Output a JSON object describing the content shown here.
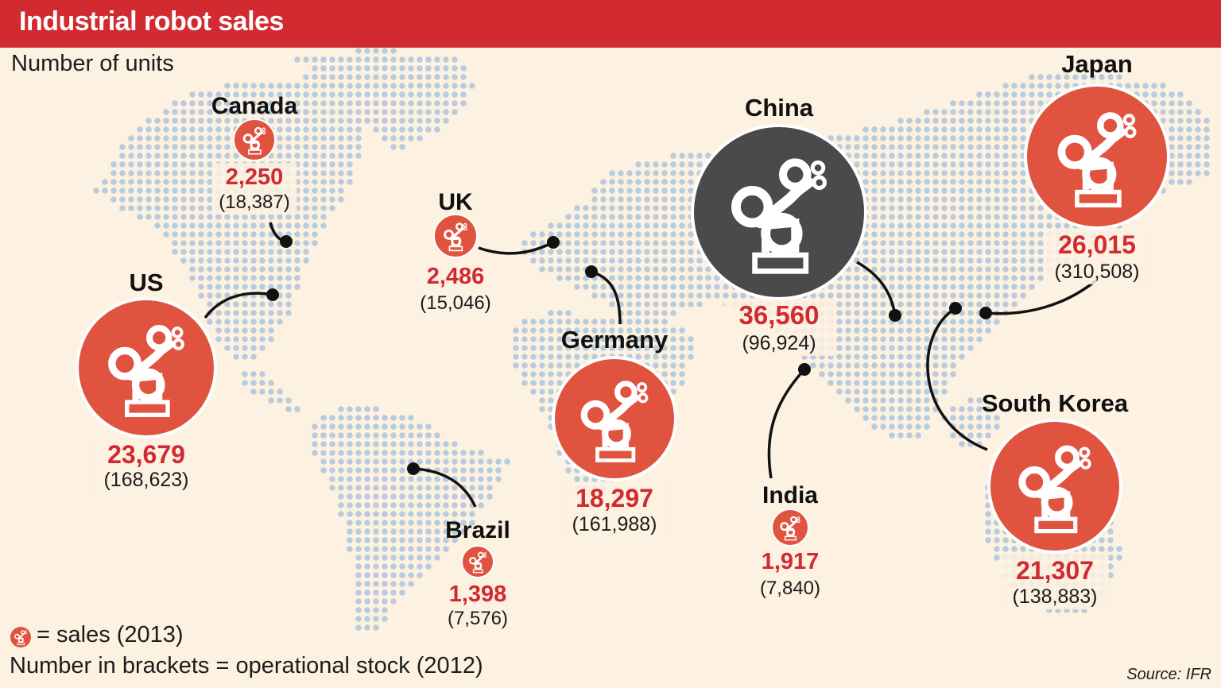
{
  "title": "Industrial robot sales",
  "subtitle": "Number of units",
  "legend": {
    "icon": "robot-arm-icon",
    "sales_text": "= sales (2013)",
    "stock_text": "Number in brackets = operational stock (2012)"
  },
  "source": "Source: IFR",
  "colors": {
    "header": "#d12a30",
    "circle_red": "#e0533f",
    "circle_highlight": "#4a4a4a",
    "dots": "#b9ccdd",
    "background": "#fdf1e1"
  },
  "countries": [
    {
      "name": "Canada",
      "sales": "2,250",
      "stock": "(18,387)",
      "sales_units": 2250,
      "stock_units": 18387
    },
    {
      "name": "UK",
      "sales": "2,486",
      "stock": "(15,046)",
      "sales_units": 2486,
      "stock_units": 15046
    },
    {
      "name": "US",
      "sales": "23,679",
      "stock": "(168,623)",
      "sales_units": 23679,
      "stock_units": 168623
    },
    {
      "name": "Germany",
      "sales": "18,297",
      "stock": "(161,988)",
      "sales_units": 18297,
      "stock_units": 161988
    },
    {
      "name": "China",
      "sales": "36,560",
      "stock": "(96,924)",
      "sales_units": 36560,
      "stock_units": 96924,
      "highlight": true
    },
    {
      "name": "Japan",
      "sales": "26,015",
      "stock": "(310,508)",
      "sales_units": 26015,
      "stock_units": 310508
    },
    {
      "name": "South Korea",
      "sales": "21,307",
      "stock": "(138,883)",
      "sales_units": 21307,
      "stock_units": 138883
    },
    {
      "name": "India",
      "sales": "1,917",
      "stock": "(7,840)",
      "sales_units": 1917,
      "stock_units": 7840
    },
    {
      "name": "Brazil",
      "sales": "1,398",
      "stock": "(7,576)",
      "sales_units": 1398,
      "stock_units": 7576
    }
  ]
}
